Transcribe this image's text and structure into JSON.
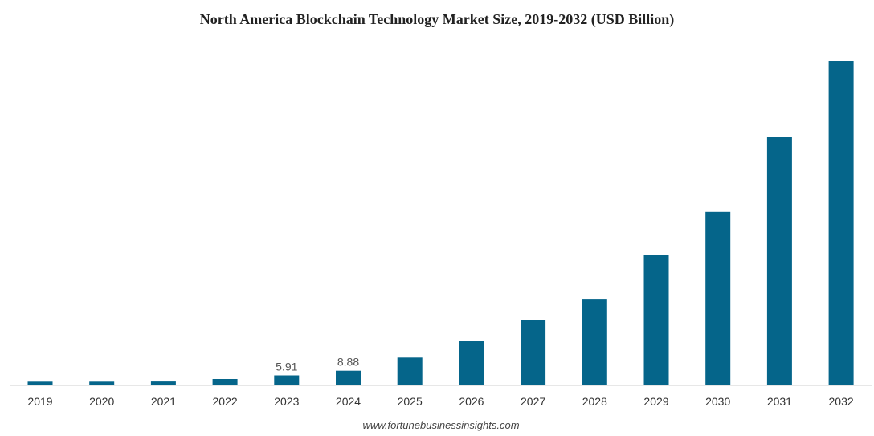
{
  "chart_data": {
    "type": "bar",
    "title": "North America Blockchain Technology Market Size, 2019-2032 (USD Billion)",
    "xlabel": "",
    "ylabel": "",
    "categories": [
      "2019",
      "2020",
      "2021",
      "2022",
      "2023",
      "2024",
      "2025",
      "2026",
      "2027",
      "2028",
      "2029",
      "2030",
      "2031",
      "2032"
    ],
    "values": [
      1.9,
      1.9,
      2.0,
      3.6,
      5.91,
      8.88,
      17.3,
      27.7,
      41.3,
      54.3,
      83.0,
      110.3,
      158.1,
      206.6
    ],
    "data_labels": [
      "",
      "",
      "",
      "",
      "5.91",
      "8.88",
      "",
      "",
      "",
      "",
      "",
      "",
      "",
      ""
    ],
    "ylim": [
      0,
      210
    ],
    "grid": false,
    "legend": "none",
    "bar_color": "#05658a",
    "source": "www.fortunebusinessinsights.com"
  }
}
